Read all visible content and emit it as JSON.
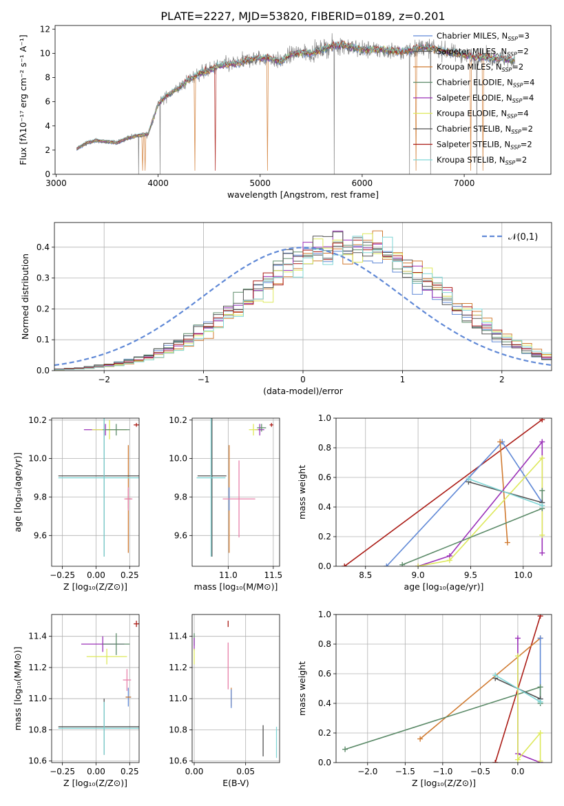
{
  "figure_title": "PLATE=2227, MJD=53820, FIBERID=0189, z=0.201",
  "colors": {
    "Chabrier MILES": "#5f88d6",
    "Salpeter MILES": "#555555",
    "Kroupa MILES": "#d07a30",
    "Chabrier ELODIE": "#5b8a68",
    "Salpeter ELODIE": "#9a2fb8",
    "Kroupa ELODIE": "#dde85a",
    "Chabrier STELIB": "#505050",
    "Salpeter STELIB": "#aa1a14",
    "Kroupa STELIB": "#7fd6d6",
    "pink": "#e87fa8",
    "gaussian": "#5f88d6",
    "grid": "#b0b0b0",
    "data_spectrum": "#808080"
  },
  "chart_data": [
    {
      "id": "spectrum",
      "type": "line",
      "title": "PLATE=2227, MJD=53820, FIBERID=0189, z=0.201",
      "xlabel": "wavelength [Angstrom, rest frame]",
      "ylabel": "Flux [fλ10⁻¹⁷ erg cm⁻² s⁻¹ A⁻¹]",
      "xlim": [
        2990,
        7850
      ],
      "ylim": [
        0,
        12.3
      ],
      "xticks": [
        3000,
        4000,
        5000,
        6000,
        7000
      ],
      "yticks": [
        0,
        2,
        4,
        6,
        8,
        10,
        12
      ],
      "grid": false,
      "legend_position": "right",
      "continuum": {
        "x": [
          3200,
          3300,
          3400,
          3500,
          3600,
          3700,
          3800,
          3900,
          4000,
          4100,
          4200,
          4300,
          4400,
          4500,
          4600,
          4700,
          4800,
          4900,
          5000,
          5100,
          5200,
          5300,
          5400,
          5500,
          5600,
          5700,
          5800,
          5900,
          6000,
          6100,
          6200,
          6300,
          6400,
          6500,
          6600,
          6700,
          6800,
          6900,
          7000,
          7100,
          7200,
          7300,
          7400,
          7500
        ],
        "y": [
          2.1,
          2.6,
          2.8,
          2.7,
          2.6,
          3.0,
          3.2,
          3.3,
          5.8,
          6.6,
          7.1,
          7.8,
          8.3,
          8.6,
          9.0,
          9.1,
          9.2,
          9.5,
          9.6,
          9.6,
          9.3,
          9.9,
          10.1,
          10.0,
          10.3,
          10.6,
          10.7,
          10.5,
          10.3,
          10.3,
          10.3,
          10.2,
          10.1,
          10.3,
          10.5,
          10.4,
          10.2,
          10.0,
          9.9,
          9.7,
          9.7,
          9.6,
          9.5,
          9.4
        ]
      },
      "series": [
        {
          "name": "Chabrier MILES, N_SSP=3"
        },
        {
          "name": "Salpeter MILES, N_SSP=2"
        },
        {
          "name": "Kroupa MILES, N_SSP=2"
        },
        {
          "name": "Chabrier ELODIE, N_SSP=4"
        },
        {
          "name": "Salpeter ELODIE, N_SSP=4"
        },
        {
          "name": "Kroupa ELODIE, N_SSP=4"
        },
        {
          "name": "Chabrier STELIB, N_SSP=2"
        },
        {
          "name": "Salpeter STELIB, N_SSP=2"
        },
        {
          "name": "Kroupa STELIB, N_SSP=2"
        }
      ]
    },
    {
      "id": "residuals",
      "type": "area",
      "xlabel": "(data-model)/error",
      "ylabel": "Normed distribution",
      "xlim": [
        -2.5,
        2.5
      ],
      "ylim": [
        0,
        0.48
      ],
      "xticks": [
        -2,
        -1,
        0,
        1,
        2
      ],
      "yticks": [
        0.0,
        0.1,
        0.2,
        0.3,
        0.4
      ],
      "grid": true,
      "legend_position": "top-right",
      "gaussian_label": "𝒩(0,1)",
      "bin_width": 0.1,
      "bins_start": -2.5
    },
    {
      "id": "age_vs_Z",
      "type": "scatter",
      "xlabel": "Z [log₁₀(Z/Z⊙)]",
      "ylabel": "age [log₁₀(age/yr)]",
      "xlim": [
        -0.33,
        0.32
      ],
      "ylim": [
        9.44,
        10.21
      ],
      "xticks": [
        -0.25,
        0.0,
        0.25
      ],
      "yticks": [
        9.6,
        9.8,
        10.0,
        10.2
      ],
      "grid": true,
      "points": [
        {
          "model": "Chabrier MILES",
          "x": 0.24,
          "y": 9.79,
          "xerr": 0.02,
          "yerr": 0.05
        },
        {
          "model": "Kroupa MILES",
          "x": 0.24,
          "y": 9.79,
          "xerr": 0.02,
          "yerr": 0.28
        },
        {
          "model": "pink",
          "x": 0.24,
          "y": 9.79,
          "xerr": 0.03,
          "yerr": 0.06
        },
        {
          "model": "Salpeter ELODIE",
          "x": 0.07,
          "y": 10.15,
          "xerr": 0.16,
          "yerr": 0.03
        },
        {
          "model": "Kroupa ELODIE",
          "x": 0.1,
          "y": 10.15,
          "xerr": 0.13,
          "yerr": 0.05
        },
        {
          "model": "Chabrier ELODIE",
          "x": 0.15,
          "y": 10.15,
          "xerr": 0.1,
          "yerr": 0.03
        },
        {
          "model": "Salpeter STELIB",
          "x": 0.3,
          "y": 10.175,
          "xerr": 0.02,
          "yerr": 0.01
        },
        {
          "model": "Chabrier STELIB",
          "x": 0.06,
          "y": 9.91,
          "xerr": 0.34,
          "yerr": 0.42
        },
        {
          "model": "Kroupa STELIB",
          "x": 0.06,
          "y": 9.9,
          "xerr": 0.34,
          "yerr": 0.41
        }
      ]
    },
    {
      "id": "age_vs_mass",
      "type": "scatter",
      "xlabel": "mass [log₁₀(M/M⊙)]",
      "ylabel": "",
      "xlim": [
        10.6,
        11.57
      ],
      "ylim": [
        9.44,
        10.21
      ],
      "xticks": [
        11.0,
        11.5
      ],
      "yticks": [
        9.6,
        9.8,
        10.0,
        10.2
      ],
      "grid": true,
      "points": [
        {
          "model": "Kroupa MILES",
          "x": 11.01,
          "y": 9.79,
          "xerr": 0.0,
          "yerr": 0.28
        },
        {
          "model": "Chabrier MILES",
          "x": 11.01,
          "y": 9.79,
          "xerr": 0.0,
          "yerr": 0.06
        },
        {
          "model": "pink",
          "x": 11.12,
          "y": 9.79,
          "xerr": 0.18,
          "yerr": 0.2
        },
        {
          "model": "Salpeter ELODIE",
          "x": 11.35,
          "y": 10.15,
          "xerr": 0.05,
          "yerr": 0.03
        },
        {
          "model": "Kroupa ELODIE",
          "x": 11.28,
          "y": 10.15,
          "xerr": 0.05,
          "yerr": 0.03
        },
        {
          "model": "Chabrier ELODIE",
          "x": 11.37,
          "y": 10.16,
          "xerr": 0.05,
          "yerr": 0.02
        },
        {
          "model": "Salpeter STELIB",
          "x": 11.48,
          "y": 10.175,
          "xerr": 0.02,
          "yerr": 0.01
        },
        {
          "model": "Chabrier STELIB",
          "x": 10.82,
          "y": 9.91,
          "xerr": 0.16,
          "yerr": 0.42
        },
        {
          "model": "Kroupa STELIB",
          "x": 10.81,
          "y": 9.9,
          "xerr": 0.16,
          "yerr": 0.41
        }
      ]
    },
    {
      "id": "weight_vs_age",
      "type": "line",
      "xlabel": "age [log₁₀(age/yr)]",
      "ylabel": "mass weight",
      "xlim": [
        8.22,
        10.27
      ],
      "ylim": [
        0,
        1
      ],
      "xticks": [
        8.5,
        9.0,
        9.5,
        10.0
      ],
      "yticks": [
        0.0,
        0.2,
        0.4,
        0.6,
        0.8,
        1.0
      ],
      "grid": true,
      "series": [
        {
          "model": "Salpeter STELIB",
          "x": [
            8.3,
            10.18
          ],
          "y": [
            0.0,
            0.99
          ]
        },
        {
          "model": "Chabrier MILES",
          "x": [
            8.7,
            9.8,
            10.18
          ],
          "y": [
            0.0,
            0.84,
            0.43
          ]
        },
        {
          "model": "Kroupa MILES",
          "x": [
            9.78,
            9.85
          ],
          "y": [
            0.84,
            0.16
          ]
        },
        {
          "model": "Salpeter ELODIE",
          "x": [
            9.0,
            9.3,
            10.18,
            10.18
          ],
          "y": [
            0.0,
            0.07,
            0.84,
            0.09
          ]
        },
        {
          "model": "Kroupa ELODIE",
          "x": [
            9.0,
            9.3,
            10.18,
            10.18
          ],
          "y": [
            0.0,
            0.04,
            0.73,
            0.21
          ]
        },
        {
          "model": "Chabrier ELODIE",
          "x": [
            8.85,
            10.18,
            10.18
          ],
          "y": [
            0.01,
            0.39,
            0.51
          ]
        },
        {
          "model": "Chabrier STELIB",
          "x": [
            9.48,
            10.18
          ],
          "y": [
            0.57,
            0.43
          ]
        },
        {
          "model": "Kroupa STELIB",
          "x": [
            9.48,
            10.18
          ],
          "y": [
            0.59,
            0.41
          ]
        }
      ]
    },
    {
      "id": "mass_vs_Z",
      "type": "scatter",
      "xlabel": "Z [log₁₀(Z/Z⊙)]",
      "ylabel": "mass [log₁₀(M/M⊙)]",
      "xlim": [
        -0.33,
        0.32
      ],
      "ylim": [
        10.59,
        11.54
      ],
      "xticks": [
        -0.25,
        0.0,
        0.25
      ],
      "yticks": [
        10.6,
        10.8,
        11.0,
        11.2,
        11.4
      ],
      "grid": true,
      "points": [
        {
          "model": "Chabrier MILES",
          "x": 0.24,
          "y": 11.01,
          "xerr": 0.02,
          "yerr": 0.06
        },
        {
          "model": "Kroupa MILES",
          "x": 0.24,
          "y": 11.01,
          "xerr": 0.02,
          "yerr": 0.0
        },
        {
          "model": "pink",
          "x": 0.23,
          "y": 11.12,
          "xerr": 0.03,
          "yerr": 0.07
        },
        {
          "model": "Salpeter ELODIE",
          "x": 0.05,
          "y": 11.35,
          "xerr": 0.16,
          "yerr": 0.05
        },
        {
          "model": "Kroupa ELODIE",
          "x": 0.08,
          "y": 11.27,
          "xerr": 0.15,
          "yerr": 0.05
        },
        {
          "model": "Chabrier ELODIE",
          "x": 0.15,
          "y": 11.35,
          "xerr": 0.1,
          "yerr": 0.07
        },
        {
          "model": "Salpeter STELIB",
          "x": 0.3,
          "y": 11.48,
          "xerr": 0.02,
          "yerr": 0.02
        },
        {
          "model": "Chabrier STELIB",
          "x": 0.06,
          "y": 10.82,
          "xerr": 0.34,
          "yerr": 0.18
        },
        {
          "model": "Kroupa STELIB",
          "x": 0.06,
          "y": 10.81,
          "xerr": 0.34,
          "yerr": 0.17
        }
      ]
    },
    {
      "id": "mass_vs_ebv",
      "type": "scatter",
      "xlabel": "E(B-V)",
      "ylabel": "",
      "xlim": [
        -0.002,
        0.083
      ],
      "ylim": [
        10.59,
        11.54
      ],
      "xticks": [
        0.0,
        0.05
      ],
      "yticks": [
        10.6,
        10.8,
        11.0,
        11.2,
        11.4
      ],
      "grid": true,
      "points": [
        {
          "model": "Chabrier ELODIE",
          "x": 0.0,
          "y": 11.38,
          "xerr": 0.0,
          "yerr": 0.04
        },
        {
          "model": "Salpeter ELODIE",
          "x": 0.0,
          "y": 11.35,
          "xerr": 0.0,
          "yerr": 0.04
        },
        {
          "model": "Kroupa ELODIE",
          "x": 0.0,
          "y": 11.27,
          "xerr": 0.0,
          "yerr": 0.05
        },
        {
          "model": "Salpeter STELIB",
          "x": 0.033,
          "y": 11.48,
          "xerr": 0.0,
          "yerr": 0.02
        },
        {
          "model": "pink",
          "x": 0.033,
          "y": 11.21,
          "xerr": 0.0,
          "yerr": 0.15
        },
        {
          "model": "Kroupa MILES",
          "x": 0.036,
          "y": 11.01,
          "xerr": 0.0,
          "yerr": 0.06
        },
        {
          "model": "Chabrier MILES",
          "x": 0.036,
          "y": 11.0,
          "xerr": 0.0,
          "yerr": 0.06
        },
        {
          "model": "Chabrier STELIB",
          "x": 0.067,
          "y": 10.73,
          "xerr": 0.0,
          "yerr": 0.1
        },
        {
          "model": "Kroupa STELIB",
          "x": 0.08,
          "y": 10.72,
          "xerr": 0.0,
          "yerr": 0.1
        }
      ]
    },
    {
      "id": "weight_vs_Z",
      "type": "line",
      "xlabel": "Z [log₁₀(Z/Z⊙)]",
      "ylabel": "mass weight",
      "xlim": [
        -2.42,
        0.45
      ],
      "ylim": [
        0,
        1
      ],
      "xticks": [
        -2.0,
        -1.5,
        -1.0,
        -0.5,
        0.0
      ],
      "yticks": [
        0.0,
        0.2,
        0.4,
        0.6,
        0.8,
        1.0
      ],
      "grid": true,
      "series": [
        {
          "model": "Salpeter STELIB",
          "x": [
            -0.3,
            0.3
          ],
          "y": [
            0.0,
            0.99
          ]
        },
        {
          "model": "Kroupa MILES",
          "x": [
            -1.3,
            0.3
          ],
          "y": [
            0.16,
            0.84
          ]
        },
        {
          "model": "Chabrier MILES",
          "x": [
            0.3,
            0.3
          ],
          "y": [
            0.84,
            0.43
          ]
        },
        {
          "model": "Chabrier ELODIE",
          "x": [
            -2.3,
            0.3,
            0.3
          ],
          "y": [
            0.09,
            0.51,
            0.4
          ]
        },
        {
          "model": "Salpeter ELODIE",
          "x": [
            0.0,
            0.0,
            0.3
          ],
          "y": [
            0.84,
            0.06,
            0.0
          ]
        },
        {
          "model": "Kroupa ELODIE",
          "x": [
            0.0,
            0.0,
            0.3,
            0.3
          ],
          "y": [
            0.72,
            0.02,
            0.2,
            0.01
          ]
        },
        {
          "model": "Chabrier STELIB",
          "x": [
            -0.3,
            0.3
          ],
          "y": [
            0.57,
            0.43
          ]
        },
        {
          "model": "Kroupa STELIB",
          "x": [
            -0.3,
            0.3
          ],
          "y": [
            0.59,
            0.41
          ]
        }
      ]
    }
  ]
}
